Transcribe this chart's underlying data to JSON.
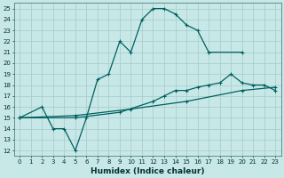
{
  "xlabel": "Humidex (Indice chaleur)",
  "background_color": "#c8e8e8",
  "grid_color": "#a8cece",
  "line_color": "#006060",
  "xlim": [
    -0.5,
    23.5
  ],
  "ylim": [
    11.5,
    25.5
  ],
  "xticks": [
    0,
    1,
    2,
    3,
    4,
    5,
    6,
    7,
    8,
    9,
    10,
    11,
    12,
    13,
    14,
    15,
    16,
    17,
    18,
    19,
    20,
    21,
    22,
    23
  ],
  "yticks": [
    12,
    13,
    14,
    15,
    16,
    17,
    18,
    19,
    20,
    21,
    22,
    23,
    24,
    25
  ],
  "line1_x": [
    0,
    2,
    3,
    4,
    5,
    6,
    7,
    8,
    9,
    10,
    11,
    12,
    13,
    14,
    15,
    16,
    17,
    20
  ],
  "line1_y": [
    15,
    16,
    14,
    14,
    12,
    15,
    18.5,
    19,
    22,
    21,
    24,
    25,
    25,
    24.5,
    23.5,
    23,
    21,
    21
  ],
  "line2_x": [
    0,
    5,
    9,
    12,
    13,
    14,
    15,
    16,
    17,
    18,
    19,
    20,
    21,
    22,
    23
  ],
  "line2_y": [
    15,
    15,
    15.5,
    16.5,
    17,
    17.5,
    17.5,
    17.8,
    18,
    18.2,
    19,
    18.2,
    18,
    18,
    17.5
  ],
  "line3_x": [
    0,
    5,
    10,
    15,
    20,
    23
  ],
  "line3_y": [
    15,
    15.2,
    15.8,
    16.5,
    17.5,
    17.8
  ]
}
